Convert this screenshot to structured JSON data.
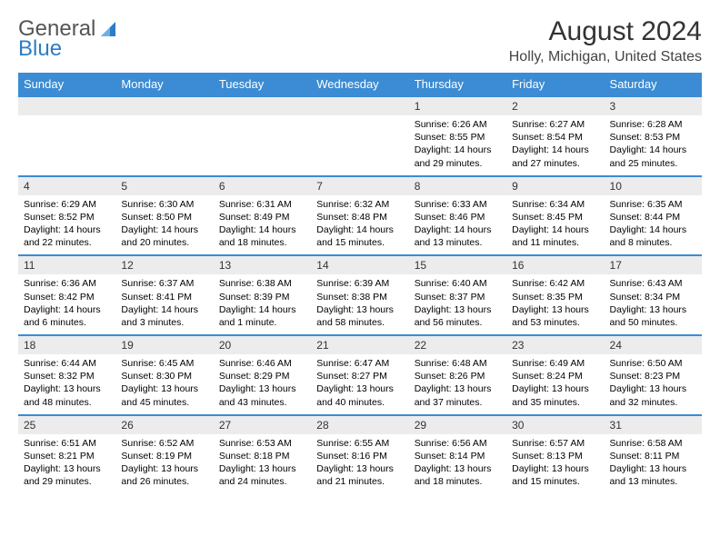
{
  "logo": {
    "text1": "General",
    "text2": "Blue"
  },
  "title": "August 2024",
  "location": "Holly, Michigan, United States",
  "colors": {
    "header_bg": "#3b8cd4",
    "header_text": "#ffffff",
    "date_bg": "#ececec",
    "divider": "#3b8cd4",
    "logo_gray": "#555555",
    "logo_blue": "#2d7dc4"
  },
  "day_names": [
    "Sunday",
    "Monday",
    "Tuesday",
    "Wednesday",
    "Thursday",
    "Friday",
    "Saturday"
  ],
  "weeks": [
    [
      {
        "date": "",
        "sunrise": "",
        "sunset": "",
        "daylight": ""
      },
      {
        "date": "",
        "sunrise": "",
        "sunset": "",
        "daylight": ""
      },
      {
        "date": "",
        "sunrise": "",
        "sunset": "",
        "daylight": ""
      },
      {
        "date": "",
        "sunrise": "",
        "sunset": "",
        "daylight": ""
      },
      {
        "date": "1",
        "sunrise": "Sunrise: 6:26 AM",
        "sunset": "Sunset: 8:55 PM",
        "daylight": "Daylight: 14 hours and 29 minutes."
      },
      {
        "date": "2",
        "sunrise": "Sunrise: 6:27 AM",
        "sunset": "Sunset: 8:54 PM",
        "daylight": "Daylight: 14 hours and 27 minutes."
      },
      {
        "date": "3",
        "sunrise": "Sunrise: 6:28 AM",
        "sunset": "Sunset: 8:53 PM",
        "daylight": "Daylight: 14 hours and 25 minutes."
      }
    ],
    [
      {
        "date": "4",
        "sunrise": "Sunrise: 6:29 AM",
        "sunset": "Sunset: 8:52 PM",
        "daylight": "Daylight: 14 hours and 22 minutes."
      },
      {
        "date": "5",
        "sunrise": "Sunrise: 6:30 AM",
        "sunset": "Sunset: 8:50 PM",
        "daylight": "Daylight: 14 hours and 20 minutes."
      },
      {
        "date": "6",
        "sunrise": "Sunrise: 6:31 AM",
        "sunset": "Sunset: 8:49 PM",
        "daylight": "Daylight: 14 hours and 18 minutes."
      },
      {
        "date": "7",
        "sunrise": "Sunrise: 6:32 AM",
        "sunset": "Sunset: 8:48 PM",
        "daylight": "Daylight: 14 hours and 15 minutes."
      },
      {
        "date": "8",
        "sunrise": "Sunrise: 6:33 AM",
        "sunset": "Sunset: 8:46 PM",
        "daylight": "Daylight: 14 hours and 13 minutes."
      },
      {
        "date": "9",
        "sunrise": "Sunrise: 6:34 AM",
        "sunset": "Sunset: 8:45 PM",
        "daylight": "Daylight: 14 hours and 11 minutes."
      },
      {
        "date": "10",
        "sunrise": "Sunrise: 6:35 AM",
        "sunset": "Sunset: 8:44 PM",
        "daylight": "Daylight: 14 hours and 8 minutes."
      }
    ],
    [
      {
        "date": "11",
        "sunrise": "Sunrise: 6:36 AM",
        "sunset": "Sunset: 8:42 PM",
        "daylight": "Daylight: 14 hours and 6 minutes."
      },
      {
        "date": "12",
        "sunrise": "Sunrise: 6:37 AM",
        "sunset": "Sunset: 8:41 PM",
        "daylight": "Daylight: 14 hours and 3 minutes."
      },
      {
        "date": "13",
        "sunrise": "Sunrise: 6:38 AM",
        "sunset": "Sunset: 8:39 PM",
        "daylight": "Daylight: 14 hours and 1 minute."
      },
      {
        "date": "14",
        "sunrise": "Sunrise: 6:39 AM",
        "sunset": "Sunset: 8:38 PM",
        "daylight": "Daylight: 13 hours and 58 minutes."
      },
      {
        "date": "15",
        "sunrise": "Sunrise: 6:40 AM",
        "sunset": "Sunset: 8:37 PM",
        "daylight": "Daylight: 13 hours and 56 minutes."
      },
      {
        "date": "16",
        "sunrise": "Sunrise: 6:42 AM",
        "sunset": "Sunset: 8:35 PM",
        "daylight": "Daylight: 13 hours and 53 minutes."
      },
      {
        "date": "17",
        "sunrise": "Sunrise: 6:43 AM",
        "sunset": "Sunset: 8:34 PM",
        "daylight": "Daylight: 13 hours and 50 minutes."
      }
    ],
    [
      {
        "date": "18",
        "sunrise": "Sunrise: 6:44 AM",
        "sunset": "Sunset: 8:32 PM",
        "daylight": "Daylight: 13 hours and 48 minutes."
      },
      {
        "date": "19",
        "sunrise": "Sunrise: 6:45 AM",
        "sunset": "Sunset: 8:30 PM",
        "daylight": "Daylight: 13 hours and 45 minutes."
      },
      {
        "date": "20",
        "sunrise": "Sunrise: 6:46 AM",
        "sunset": "Sunset: 8:29 PM",
        "daylight": "Daylight: 13 hours and 43 minutes."
      },
      {
        "date": "21",
        "sunrise": "Sunrise: 6:47 AM",
        "sunset": "Sunset: 8:27 PM",
        "daylight": "Daylight: 13 hours and 40 minutes."
      },
      {
        "date": "22",
        "sunrise": "Sunrise: 6:48 AM",
        "sunset": "Sunset: 8:26 PM",
        "daylight": "Daylight: 13 hours and 37 minutes."
      },
      {
        "date": "23",
        "sunrise": "Sunrise: 6:49 AM",
        "sunset": "Sunset: 8:24 PM",
        "daylight": "Daylight: 13 hours and 35 minutes."
      },
      {
        "date": "24",
        "sunrise": "Sunrise: 6:50 AM",
        "sunset": "Sunset: 8:23 PM",
        "daylight": "Daylight: 13 hours and 32 minutes."
      }
    ],
    [
      {
        "date": "25",
        "sunrise": "Sunrise: 6:51 AM",
        "sunset": "Sunset: 8:21 PM",
        "daylight": "Daylight: 13 hours and 29 minutes."
      },
      {
        "date": "26",
        "sunrise": "Sunrise: 6:52 AM",
        "sunset": "Sunset: 8:19 PM",
        "daylight": "Daylight: 13 hours and 26 minutes."
      },
      {
        "date": "27",
        "sunrise": "Sunrise: 6:53 AM",
        "sunset": "Sunset: 8:18 PM",
        "daylight": "Daylight: 13 hours and 24 minutes."
      },
      {
        "date": "28",
        "sunrise": "Sunrise: 6:55 AM",
        "sunset": "Sunset: 8:16 PM",
        "daylight": "Daylight: 13 hours and 21 minutes."
      },
      {
        "date": "29",
        "sunrise": "Sunrise: 6:56 AM",
        "sunset": "Sunset: 8:14 PM",
        "daylight": "Daylight: 13 hours and 18 minutes."
      },
      {
        "date": "30",
        "sunrise": "Sunrise: 6:57 AM",
        "sunset": "Sunset: 8:13 PM",
        "daylight": "Daylight: 13 hours and 15 minutes."
      },
      {
        "date": "31",
        "sunrise": "Sunrise: 6:58 AM",
        "sunset": "Sunset: 8:11 PM",
        "daylight": "Daylight: 13 hours and 13 minutes."
      }
    ]
  ]
}
